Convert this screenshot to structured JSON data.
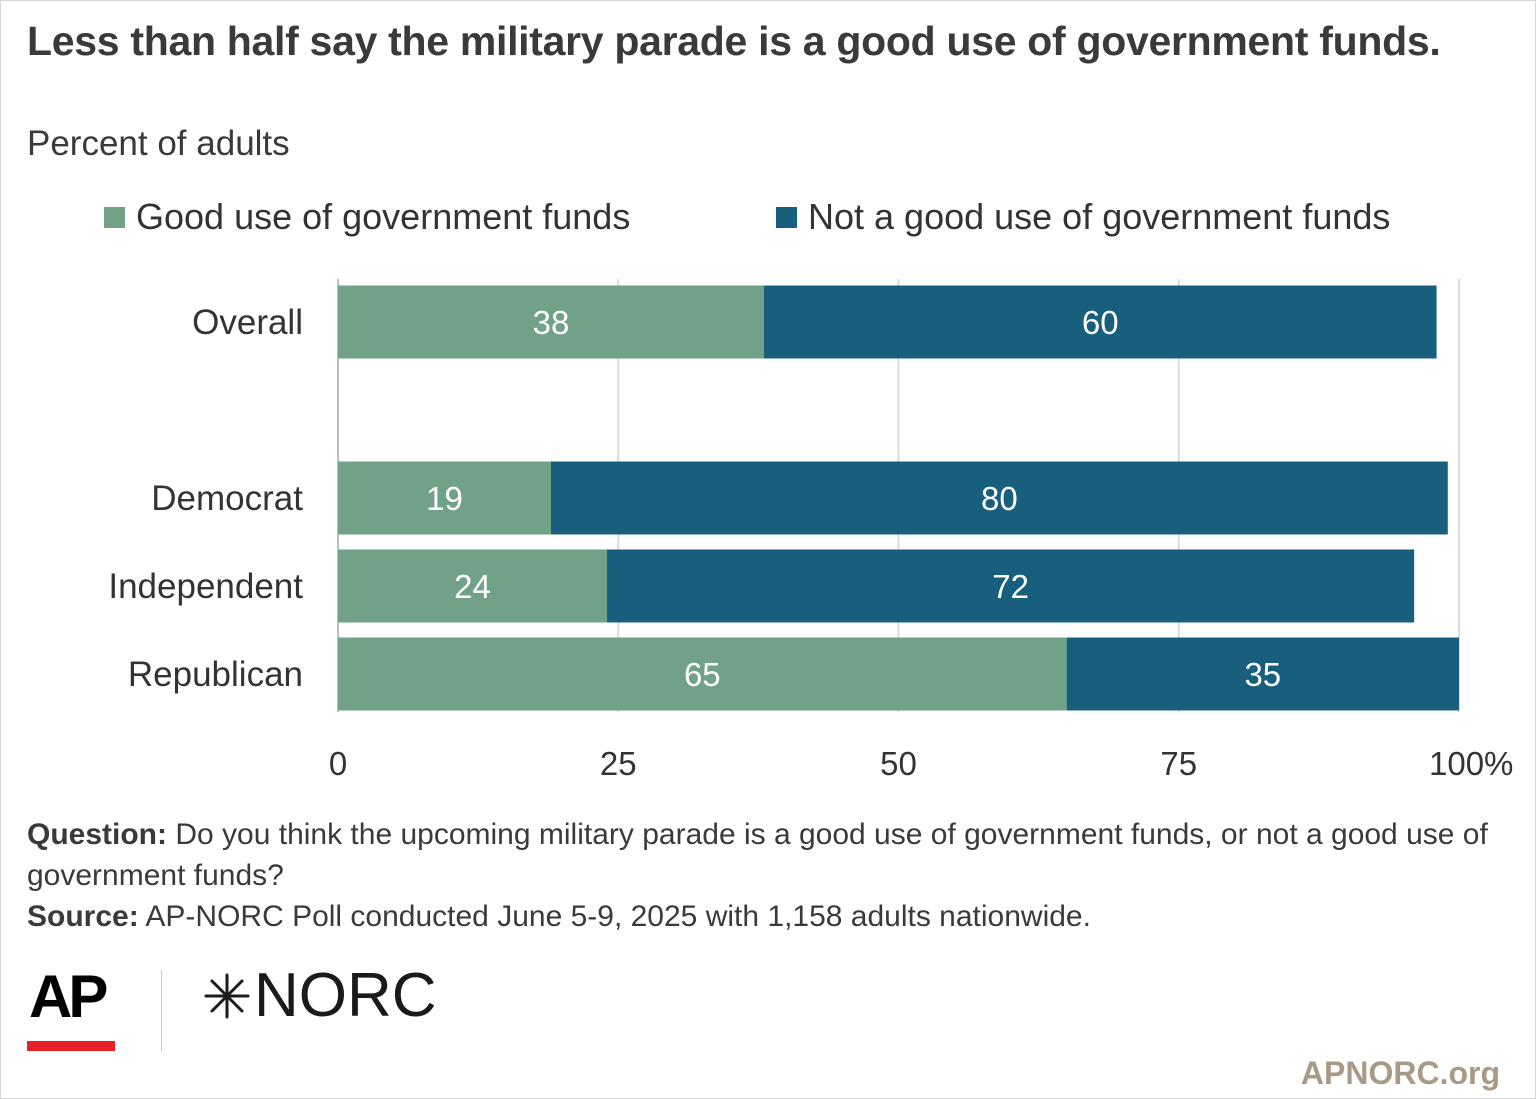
{
  "title": "Less than half say the military parade is a good use of government funds.",
  "subtitle": "Percent of adults",
  "legend": [
    {
      "label": "Good use of government funds",
      "color": "#71a287"
    },
    {
      "label": "Not a good use of government funds",
      "color": "#185e7d"
    }
  ],
  "footnote": {
    "question_label": "Question:",
    "question_text": "Do you think the upcoming military parade is a good use of government funds, or not a good use of government funds?",
    "source_label": "Source:",
    "source_text": "AP-NORC Poll conducted June 5-9, 2025 with 1,158 adults nationwide."
  },
  "logos": {
    "ap": "AP",
    "norc": "NORC",
    "site": "APNORC.org"
  },
  "chart_data": {
    "type": "bar",
    "orientation": "horizontal",
    "stacked": true,
    "categories": [
      "Overall",
      "Democrat",
      "Independent",
      "Republican"
    ],
    "series": [
      {
        "name": "Good use of government funds",
        "values": [
          38,
          19,
          24,
          65
        ],
        "color": "#71a287"
      },
      {
        "name": "Not a good use of government funds",
        "values": [
          60,
          80,
          72,
          35
        ],
        "color": "#185e7d"
      }
    ],
    "xlim": [
      0,
      100
    ],
    "xticks": [
      "0",
      "25",
      "50",
      "75",
      "100%"
    ],
    "xtick_values": [
      0,
      25,
      50,
      75,
      100
    ],
    "grid": true
  }
}
